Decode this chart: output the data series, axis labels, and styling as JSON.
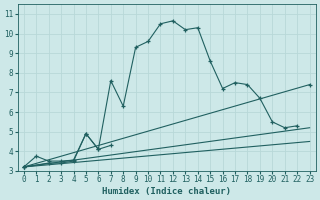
{
  "xlabel": "Humidex (Indice chaleur)",
  "background_color": "#cde8e8",
  "grid_color": "#b8d8d8",
  "line_color": "#206060",
  "xlim": [
    -0.5,
    23.5
  ],
  "ylim": [
    3.0,
    11.5
  ],
  "xticks": [
    0,
    1,
    2,
    3,
    4,
    5,
    6,
    7,
    8,
    9,
    10,
    11,
    12,
    13,
    14,
    15,
    16,
    17,
    18,
    19,
    20,
    21,
    22,
    23
  ],
  "yticks": [
    3,
    4,
    5,
    6,
    7,
    8,
    9,
    10,
    11
  ],
  "series0_x": [
    0,
    1,
    2,
    3,
    4,
    5,
    6,
    7,
    8,
    9,
    10,
    11,
    12,
    13,
    14,
    15,
    16,
    17,
    18,
    19,
    20,
    21,
    22
  ],
  "series0_y": [
    3.2,
    3.75,
    3.5,
    3.5,
    3.55,
    4.9,
    4.1,
    7.6,
    6.3,
    9.3,
    9.6,
    10.5,
    10.65,
    10.2,
    10.3,
    8.6,
    7.2,
    7.5,
    7.4,
    6.7,
    5.5,
    5.2,
    5.3
  ],
  "series1_x": [
    0,
    2,
    3,
    4,
    5,
    6,
    7
  ],
  "series1_y": [
    3.2,
    3.4,
    3.4,
    3.5,
    4.9,
    4.1,
    4.3
  ],
  "series2_x": [
    0,
    23
  ],
  "series2_y": [
    3.2,
    7.4
  ],
  "series3_x": [
    0,
    23
  ],
  "series3_y": [
    3.2,
    5.2
  ],
  "series4_x": [
    0,
    23
  ],
  "series4_y": [
    3.2,
    4.5
  ]
}
